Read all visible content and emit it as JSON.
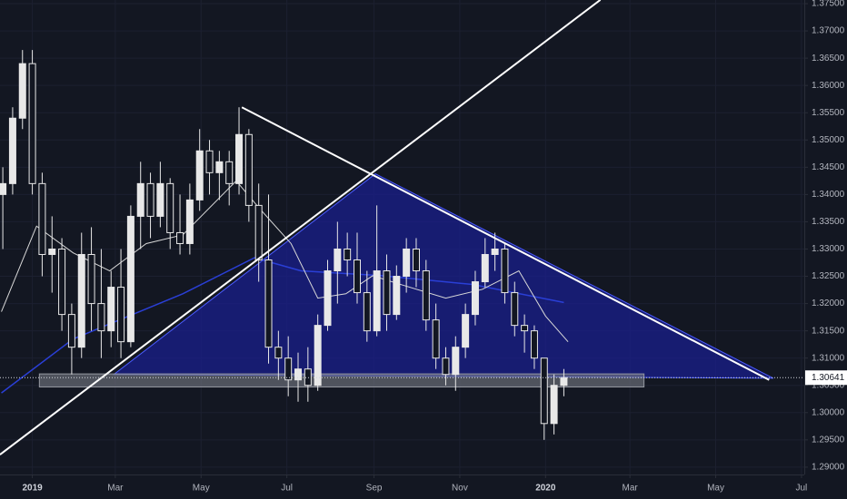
{
  "chart_data": {
    "type": "candlestick",
    "x": [
      -21,
      -14,
      -7,
      0,
      7,
      14,
      21,
      28,
      35,
      42,
      49,
      56,
      63,
      70,
      77,
      84,
      91,
      98,
      105,
      112,
      119,
      126,
      133,
      140,
      147,
      154,
      161,
      168,
      175,
      182,
      189,
      196,
      203,
      210,
      217,
      224,
      231,
      238,
      245,
      252,
      259,
      266,
      273,
      280,
      287,
      294,
      301,
      308,
      315,
      322,
      329,
      336,
      343,
      350,
      357,
      364,
      371,
      378
    ],
    "open": [
      1.34,
      1.342,
      1.354,
      1.364,
      1.342,
      1.329,
      1.33,
      1.318,
      1.312,
      1.329,
      1.32,
      1.315,
      1.323,
      1.313,
      1.336,
      1.342,
      1.336,
      1.342,
      1.333,
      1.331,
      1.339,
      1.348,
      1.344,
      1.346,
      1.342,
      1.351,
      1.338,
      1.328,
      1.312,
      1.31,
      1.306,
      1.308,
      1.305,
      1.316,
      1.326,
      1.33,
      1.328,
      1.322,
      1.315,
      1.326,
      1.318,
      1.325,
      1.33,
      1.326,
      1.317,
      1.31,
      1.307,
      1.312,
      1.318,
      1.324,
      1.329,
      1.33,
      1.322,
      1.316,
      1.315,
      1.31,
      1.298,
      1.305
    ],
    "high": [
      1.345,
      1.356,
      1.3665,
      1.3665,
      1.344,
      1.336,
      1.332,
      1.32,
      1.333,
      1.334,
      1.33,
      1.326,
      1.33,
      1.338,
      1.346,
      1.344,
      1.346,
      1.343,
      1.34,
      1.342,
      1.352,
      1.35,
      1.348,
      1.348,
      1.356,
      1.352,
      1.342,
      1.34,
      1.315,
      1.314,
      1.311,
      1.312,
      1.318,
      1.328,
      1.335,
      1.333,
      1.333,
      1.326,
      1.338,
      1.329,
      1.327,
      1.332,
      1.332,
      1.328,
      1.32,
      1.312,
      1.314,
      1.32,
      1.326,
      1.332,
      1.333,
      1.331,
      1.324,
      1.318,
      1.316,
      1.31,
      1.307,
      1.308
    ],
    "low": [
      1.33,
      1.34,
      1.352,
      1.34,
      1.325,
      1.322,
      1.315,
      1.307,
      1.31,
      1.315,
      1.31,
      1.312,
      1.31,
      1.312,
      1.33,
      1.332,
      1.334,
      1.33,
      1.329,
      1.329,
      1.337,
      1.34,
      1.339,
      1.338,
      1.34,
      1.335,
      1.324,
      1.309,
      1.306,
      1.303,
      1.302,
      1.302,
      1.304,
      1.315,
      1.32,
      1.325,
      1.32,
      1.313,
      1.314,
      1.315,
      1.317,
      1.322,
      1.323,
      1.315,
      1.308,
      1.305,
      1.304,
      1.31,
      1.316,
      1.323,
      1.326,
      1.32,
      1.314,
      1.311,
      1.308,
      1.295,
      1.296,
      1.303
    ],
    "close": [
      1.342,
      1.354,
      1.364,
      1.342,
      1.329,
      1.33,
      1.318,
      1.312,
      1.329,
      1.32,
      1.315,
      1.323,
      1.313,
      1.336,
      1.342,
      1.336,
      1.342,
      1.333,
      1.331,
      1.339,
      1.348,
      1.344,
      1.346,
      1.342,
      1.351,
      1.338,
      1.328,
      1.312,
      1.31,
      1.306,
      1.308,
      1.305,
      1.316,
      1.326,
      1.33,
      1.328,
      1.322,
      1.315,
      1.326,
      1.318,
      1.325,
      1.33,
      1.326,
      1.317,
      1.31,
      1.307,
      1.312,
      1.318,
      1.324,
      1.329,
      1.33,
      1.322,
      1.316,
      1.315,
      1.31,
      1.298,
      1.305,
      1.3064
    ],
    "color": "#e8e8e8",
    "ma": [
      {
        "color": "#2a3fd6",
        "x": [
          -22,
          29,
          107,
          158,
          191,
          249,
          313,
          378
        ],
        "values": [
          1.3036,
          1.3135,
          1.3218,
          1.3284,
          1.326,
          1.3251,
          1.3235,
          1.3202
        ]
      },
      {
        "color": "#d8d8d8",
        "x": [
          -22,
          3,
          29,
          55,
          81,
          107,
          145,
          161,
          184,
          203,
          223,
          242,
          262,
          294,
          320,
          346,
          365,
          381
        ],
        "values": [
          1.3185,
          1.3342,
          1.3293,
          1.326,
          1.331,
          1.3326,
          1.3425,
          1.3376,
          1.331,
          1.321,
          1.3218,
          1.3251,
          1.3235,
          1.321,
          1.3226,
          1.326,
          1.3177,
          1.313
        ]
      }
    ],
    "drawings": {
      "triangle": {
        "x": [
          58,
          244,
          527
        ],
        "values": [
          1.307,
          1.3438,
          1.3063
        ],
        "color": "#1a1f8c"
      },
      "lines": [
        {
          "x": [
            149,
            524
          ],
          "values": [
            1.356,
            1.306
          ],
          "color": "#ffffff"
        },
        {
          "x": [
            -23,
            404
          ],
          "values": [
            1.2923,
            1.3757
          ],
          "color": "#ffffff"
        }
      ],
      "zone": {
        "x": [
          5,
          435
        ],
        "values": [
          1.3047,
          1.3071
        ],
        "color": "#787b86"
      }
    },
    "last_price": {
      "value": 1.30641,
      "label": "1.30641"
    },
    "xlim": [
      -23,
      549
    ],
    "ylim": [
      1.28865,
      1.37567
    ],
    "xticks": [
      {
        "value": 0,
        "label": "2019"
      },
      {
        "value": 59,
        "label": "Mar"
      },
      {
        "value": 120,
        "label": "May"
      },
      {
        "value": 181,
        "label": "Jul"
      },
      {
        "value": 243,
        "label": "Sep"
      },
      {
        "value": 304,
        "label": "Nov"
      },
      {
        "value": 365,
        "label": "2020"
      },
      {
        "value": 425,
        "label": "Mar"
      },
      {
        "value": 486,
        "label": "May"
      },
      {
        "value": 547,
        "label": "Jul"
      }
    ],
    "yticks": [
      {
        "value": 1.29,
        "label": "1.29000"
      },
      {
        "value": 1.295,
        "label": "1.29500"
      },
      {
        "value": 1.3,
        "label": "1.30000"
      },
      {
        "value": 1.305,
        "label": "1.30500"
      },
      {
        "value": 1.31,
        "label": "1.31000"
      },
      {
        "value": 1.315,
        "label": "1.31500"
      },
      {
        "value": 1.32,
        "label": "1.32000"
      },
      {
        "value": 1.325,
        "label": "1.32500"
      },
      {
        "value": 1.33,
        "label": "1.33000"
      },
      {
        "value": 1.335,
        "label": "1.33500"
      },
      {
        "value": 1.34,
        "label": "1.34000"
      },
      {
        "value": 1.345,
        "label": "1.34500"
      },
      {
        "value": 1.35,
        "label": "1.35000"
      },
      {
        "value": 1.355,
        "label": "1.35500"
      },
      {
        "value": 1.36,
        "label": "1.36000"
      },
      {
        "value": 1.365,
        "label": "1.36500"
      },
      {
        "value": 1.37,
        "label": "1.37000"
      },
      {
        "value": 1.375,
        "label": "1.37500"
      }
    ],
    "grid": true
  }
}
